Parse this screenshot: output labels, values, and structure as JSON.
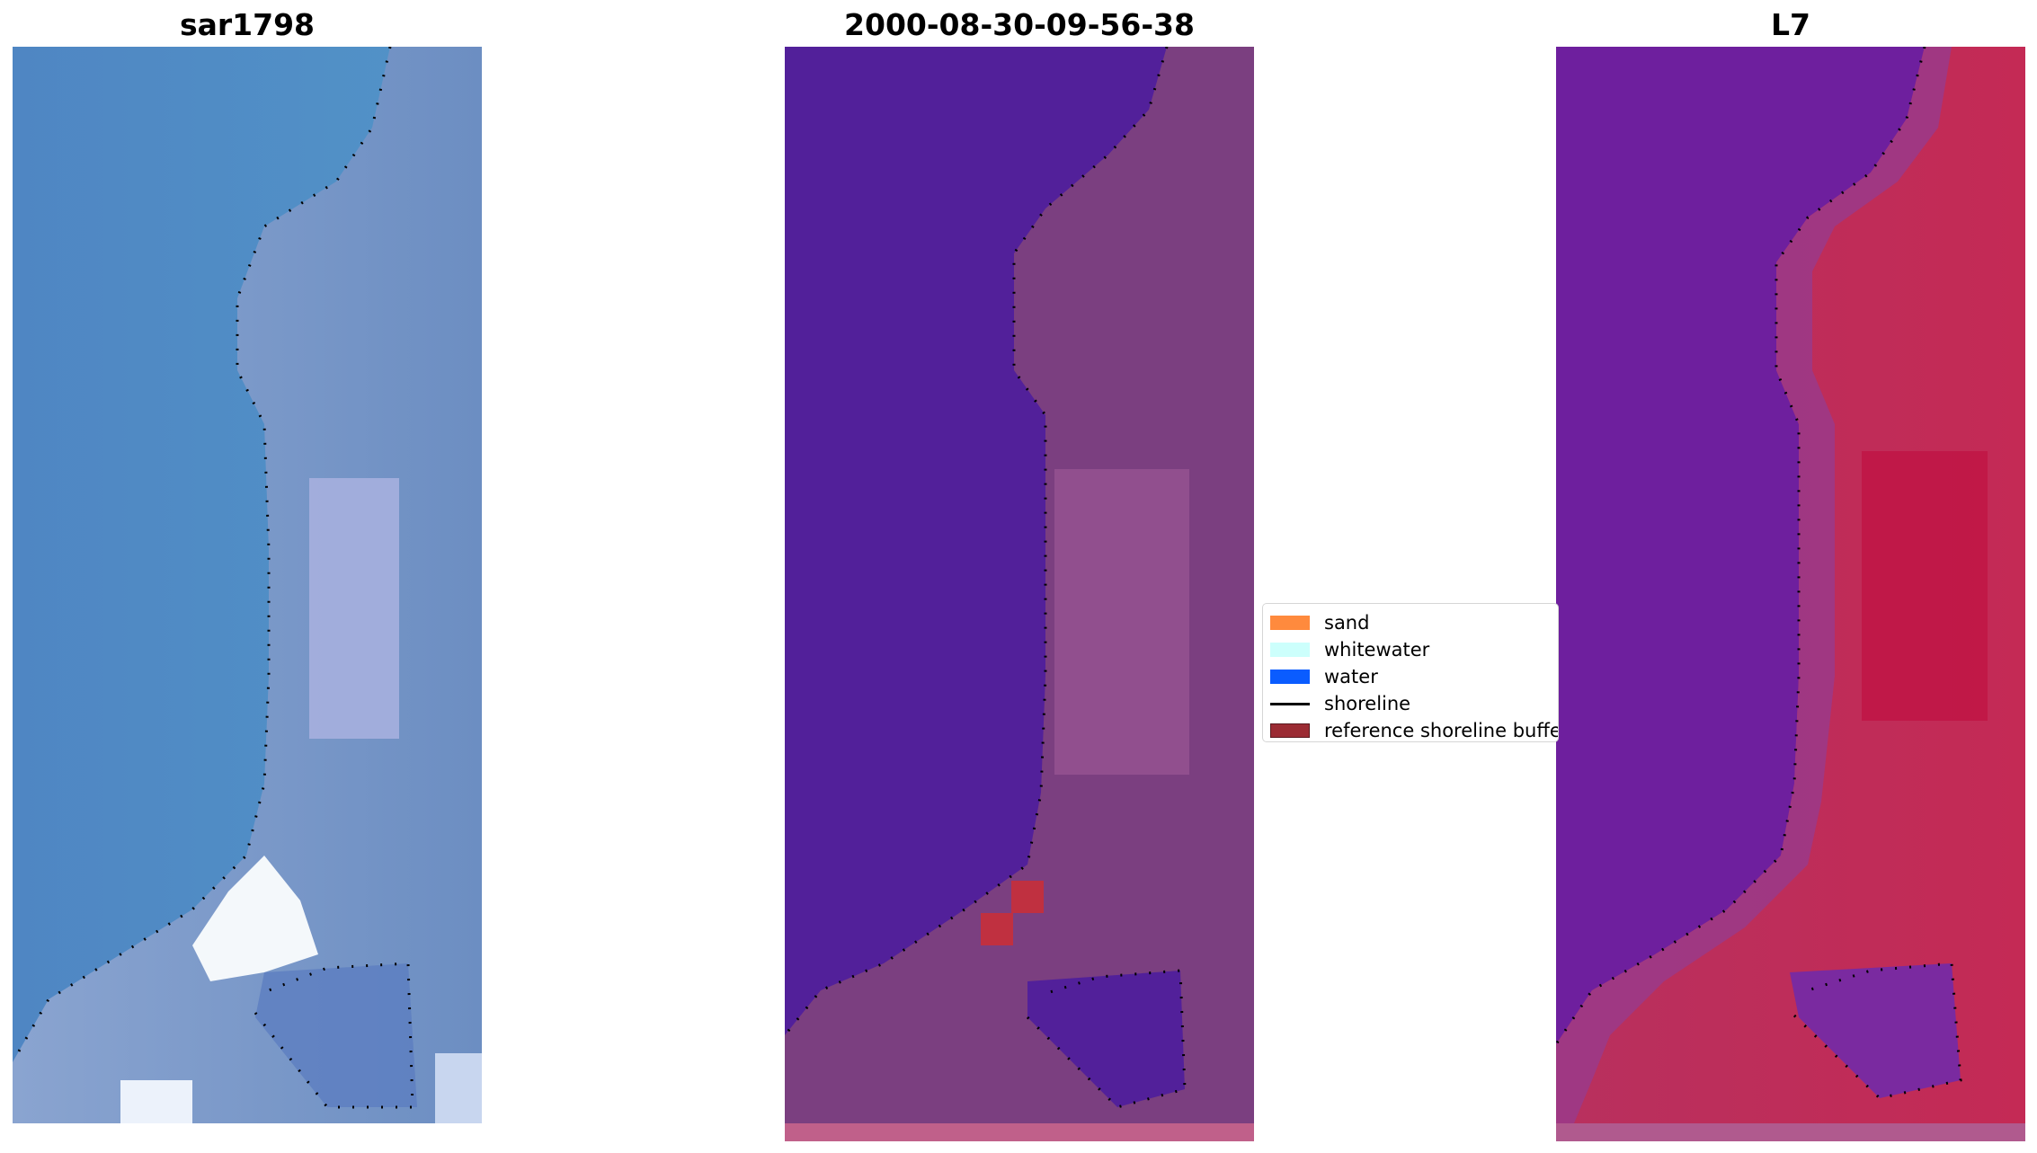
{
  "panels": [
    {
      "title": "sar1798"
    },
    {
      "title": "2000-08-30-09-56-38"
    },
    {
      "title": "L7"
    }
  ],
  "legend": {
    "items": [
      {
        "label": "sand",
        "color": "#ff8a3d",
        "kind": "patch"
      },
      {
        "label": "whitewater",
        "color": "#ccfffc",
        "kind": "patch"
      },
      {
        "label": "water",
        "color": "#0a5cff",
        "kind": "patch"
      },
      {
        "label": "shoreline",
        "color": "#000000",
        "kind": "line"
      },
      {
        "label": "reference shoreline buffer",
        "color": "#9b2b33",
        "kind": "patch"
      }
    ]
  },
  "colors": {
    "rgb_water": "#4d89c2",
    "rgb_land": "#7a96c8",
    "rgb_bright": "#ffffff",
    "class_water": "#52209a",
    "class_land": "#7b3f80",
    "class_light": "#a05a98",
    "class_red": "#c03040",
    "class_strip": "#c0608a",
    "mndwi_water": "#6a1a9e",
    "mndwi_land": "#c42a55",
    "mndwi_mid": "#9a3a8a"
  }
}
